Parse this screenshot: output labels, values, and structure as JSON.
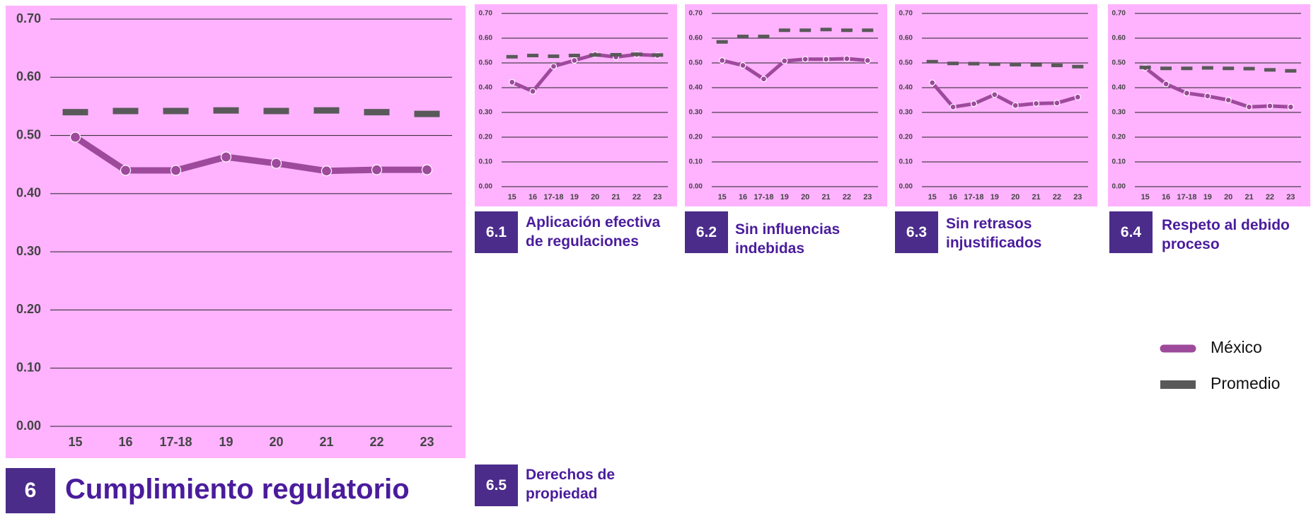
{
  "chart_data": [
    {
      "type": "line",
      "number": "6",
      "title": "Cumplimiento regulatorio",
      "categories": [
        "15",
        "16",
        "17-18",
        "19",
        "20",
        "21",
        "22",
        "23"
      ],
      "series": [
        {
          "name": "México",
          "color": "#9e4a9c",
          "style": "line",
          "values": [
            0.497,
            0.44,
            0.44,
            0.463,
            0.452,
            0.439,
            0.441,
            0.441
          ]
        },
        {
          "name": "Promedio",
          "color": "#595959",
          "style": "dash",
          "values": [
            0.54,
            0.542,
            0.542,
            0.543,
            0.542,
            0.543,
            0.54,
            0.537
          ]
        }
      ],
      "ylim": [
        0,
        0.7
      ],
      "yticks": [
        {
          "value": 0,
          "label": "0.00"
        },
        {
          "value": 0.1,
          "label": "0.10"
        },
        {
          "value": 0.2,
          "label": "0.20"
        },
        {
          "value": 0.3,
          "label": "0.30"
        },
        {
          "value": 0.4,
          "label": "0.40"
        },
        {
          "value": 0.5,
          "label": "0.50"
        },
        {
          "value": 0.6,
          "label": "0.60"
        },
        {
          "value": 0.7,
          "label": "0.70"
        }
      ],
      "grid": true,
      "legend": "right"
    },
    {
      "type": "line",
      "number": "6.1",
      "title": "Aplicación efectiva de regulaciones",
      "categories": [
        "15",
        "16",
        "17-18",
        "19",
        "20",
        "21",
        "22",
        "23"
      ],
      "series": [
        {
          "name": "México",
          "color": "#9e4a9c",
          "style": "line",
          "values": [
            0.422,
            0.385,
            0.486,
            0.51,
            0.534,
            0.524,
            0.534,
            0.53
          ]
        },
        {
          "name": "Promedio",
          "color": "#595959",
          "style": "dash",
          "values": [
            0.525,
            0.53,
            0.527,
            0.53,
            0.532,
            0.533,
            0.535,
            0.532
          ]
        }
      ],
      "ylim": [
        0,
        0.7
      ],
      "yticks": [
        {
          "value": 0,
          "label": "0.00"
        },
        {
          "value": 0.1,
          "label": "0.10"
        },
        {
          "value": 0.2,
          "label": "0.20"
        },
        {
          "value": 0.3,
          "label": "0.30"
        },
        {
          "value": 0.4,
          "label": "0.40"
        },
        {
          "value": 0.5,
          "label": "0.50"
        },
        {
          "value": 0.6,
          "label": "0.60"
        },
        {
          "value": 0.7,
          "label": "0.70"
        }
      ],
      "grid": true
    },
    {
      "type": "line",
      "number": "6.2",
      "title": "Sin influencias indebidas",
      "categories": [
        "15",
        "16",
        "17-18",
        "19",
        "20",
        "21",
        "22",
        "23"
      ],
      "series": [
        {
          "name": "México",
          "color": "#9e4a9c",
          "style": "line",
          "values": [
            0.51,
            0.49,
            0.435,
            0.508,
            0.515,
            0.515,
            0.517,
            0.51
          ]
        },
        {
          "name": "Promedio",
          "color": "#595959",
          "style": "dash",
          "values": [
            0.585,
            0.607,
            0.607,
            0.632,
            0.632,
            0.635,
            0.632,
            0.632
          ]
        }
      ],
      "ylim": [
        0,
        0.7
      ],
      "yticks": [
        {
          "value": 0,
          "label": "0.00"
        },
        {
          "value": 0.1,
          "label": "0.10"
        },
        {
          "value": 0.2,
          "label": "0.20"
        },
        {
          "value": 0.3,
          "label": "0.30"
        },
        {
          "value": 0.4,
          "label": "0.40"
        },
        {
          "value": 0.5,
          "label": "0.50"
        },
        {
          "value": 0.6,
          "label": "0.60"
        },
        {
          "value": 0.7,
          "label": "0.70"
        }
      ],
      "grid": true
    },
    {
      "type": "line",
      "number": "6.3",
      "title": "Sin retrasos injustificados",
      "categories": [
        "15",
        "16",
        "17-18",
        "19",
        "20",
        "21",
        "22",
        "23"
      ],
      "series": [
        {
          "name": "México",
          "color": "#9e4a9c",
          "style": "line",
          "values": [
            0.42,
            0.322,
            0.335,
            0.372,
            0.328,
            0.336,
            0.338,
            0.362
          ]
        },
        {
          "name": "Promedio",
          "color": "#595959",
          "style": "dash",
          "values": [
            0.505,
            0.498,
            0.497,
            0.495,
            0.493,
            0.492,
            0.49,
            0.485
          ]
        }
      ],
      "ylim": [
        0,
        0.7
      ],
      "yticks": [
        {
          "value": 0,
          "label": "0.00"
        },
        {
          "value": 0.1,
          "label": "0.10"
        },
        {
          "value": 0.2,
          "label": "0.20"
        },
        {
          "value": 0.3,
          "label": "0.30"
        },
        {
          "value": 0.4,
          "label": "0.40"
        },
        {
          "value": 0.5,
          "label": "0.50"
        },
        {
          "value": 0.6,
          "label": "0.60"
        },
        {
          "value": 0.7,
          "label": "0.70"
        }
      ],
      "grid": true
    },
    {
      "type": "line",
      "number": "6.4",
      "title": "Respeto al debido proceso",
      "categories": [
        "15",
        "16",
        "17-18",
        "19",
        "20",
        "21",
        "22",
        "23"
      ],
      "series": [
        {
          "name": "México",
          "color": "#9e4a9c",
          "style": "line",
          "values": [
            0.48,
            0.415,
            0.378,
            0.366,
            0.35,
            0.322,
            0.326,
            0.322
          ]
        },
        {
          "name": "Promedio",
          "color": "#595959",
          "style": "dash",
          "values": [
            0.482,
            0.478,
            0.478,
            0.48,
            0.478,
            0.477,
            0.472,
            0.468
          ]
        }
      ],
      "ylim": [
        0,
        0.7
      ],
      "yticks": [
        {
          "value": 0,
          "label": "0.00"
        },
        {
          "value": 0.1,
          "label": "0.10"
        },
        {
          "value": 0.2,
          "label": "0.20"
        },
        {
          "value": 0.3,
          "label": "0.30"
        },
        {
          "value": 0.4,
          "label": "0.40"
        },
        {
          "value": 0.5,
          "label": "0.50"
        },
        {
          "value": 0.6,
          "label": "0.60"
        },
        {
          "value": 0.7,
          "label": "0.70"
        }
      ],
      "grid": true
    }
  ],
  "extra_panel": {
    "number": "6.5",
    "title": "Derechos de propiedad"
  }
}
